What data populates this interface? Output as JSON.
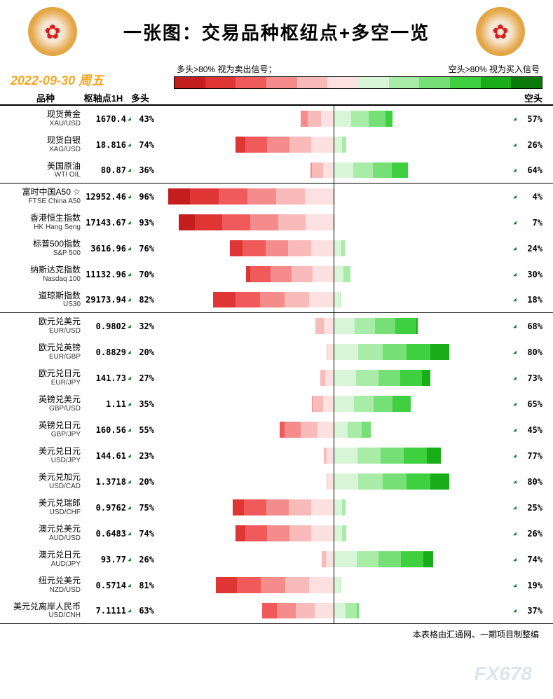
{
  "title": "一张图：交易品种枢纽点+多空一览",
  "date": "2022-09-30",
  "weekday": "周五",
  "legend_left": "多头>80% 视为卖出信号；",
  "legend_right": "空头>80% 视为买入信号",
  "headers": {
    "name": "品种",
    "pivot": "枢轴点1H",
    "long": "多头",
    "short": "空头"
  },
  "red_palette": [
    "#c41e1e",
    "#e03535",
    "#f05a5a",
    "#f58c8c",
    "#f9baba",
    "#fde0e0"
  ],
  "green_palette": [
    "#d8f5d8",
    "#a8eca8",
    "#76e076",
    "#3fd03f",
    "#1aad1a",
    "#0b7a0b"
  ],
  "legend_colors": [
    "#c41e1e",
    "#e03535",
    "#f05a5a",
    "#f58c8c",
    "#f9baba",
    "#fde0e0",
    "#d8f5d8",
    "#a8eca8",
    "#76e076",
    "#3fd03f",
    "#1aad1a",
    "#0b7a0b"
  ],
  "groups": [
    {
      "rows": [
        {
          "cn": "现货黄金",
          "en": "XAU/USD",
          "pivot": "1670.4",
          "long": 43,
          "short": 57
        },
        {
          "cn": "现货白银",
          "en": "XAG/USD",
          "pivot": "18.816",
          "long": 74,
          "short": 26
        },
        {
          "cn": "美国原油",
          "en": "WTI OIL",
          "pivot": "80.87",
          "long": 36,
          "short": 64
        }
      ]
    },
    {
      "rows": [
        {
          "cn": "富时中国A50 ☆",
          "en": "FTSE China A50",
          "pivot": "12952.46",
          "long": 96,
          "short": 4
        },
        {
          "cn": "香港恒生指数",
          "en": "HK Hang Seng",
          "pivot": "17143.67",
          "long": 93,
          "short": 7
        },
        {
          "cn": "标普500指数",
          "en": "S&P 500",
          "pivot": "3616.96",
          "long": 76,
          "short": 24
        },
        {
          "cn": "纳斯达克指数",
          "en": "Nasdaq 100",
          "pivot": "11132.96",
          "long": 70,
          "short": 30
        },
        {
          "cn": "道琼斯指数",
          "en": "US30",
          "pivot": "29173.94",
          "long": 82,
          "short": 18
        }
      ]
    },
    {
      "rows": [
        {
          "cn": "欧元兑美元",
          "en": "EUR/USD",
          "pivot": "0.9802",
          "long": 32,
          "short": 68
        },
        {
          "cn": "欧元兑英镑",
          "en": "EUR/GBP",
          "pivot": "0.8829",
          "long": 20,
          "short": 80
        },
        {
          "cn": "欧元兑日元",
          "en": "EUR/JPY",
          "pivot": "141.73",
          "long": 27,
          "short": 73
        },
        {
          "cn": "英镑兑美元",
          "en": "GBP/USD",
          "pivot": "1.11",
          "long": 35,
          "short": 65
        },
        {
          "cn": "英镑兑日元",
          "en": "GBP/JPY",
          "pivot": "160.56",
          "long": 55,
          "short": 45
        },
        {
          "cn": "美元兑日元",
          "en": "USD/JPY",
          "pivot": "144.61",
          "long": 23,
          "short": 77
        },
        {
          "cn": "美元兑加元",
          "en": "USD/CAD",
          "pivot": "1.3718",
          "long": 20,
          "short": 80
        },
        {
          "cn": "美元兑瑞郎",
          "en": "USD/CHF",
          "pivot": "0.9762",
          "long": 75,
          "short": 25
        },
        {
          "cn": "澳元兑美元",
          "en": "AUD/USD",
          "pivot": "0.6483",
          "long": 74,
          "short": 26
        },
        {
          "cn": "澳元兑日元",
          "en": "AUD/JPY",
          "pivot": "93.77",
          "long": 26,
          "short": 74
        },
        {
          "cn": "纽元兑美元",
          "en": "NZD/USD",
          "pivot": "0.5714",
          "long": 81,
          "short": 19
        },
        {
          "cn": "美元兑离岸人民币",
          "en": "USD/CNH",
          "pivot": "7.1111",
          "long": 63,
          "short": 37
        }
      ]
    }
  ],
  "footer": "本表格由汇通网、一期项目制整编",
  "watermark": "FX678"
}
